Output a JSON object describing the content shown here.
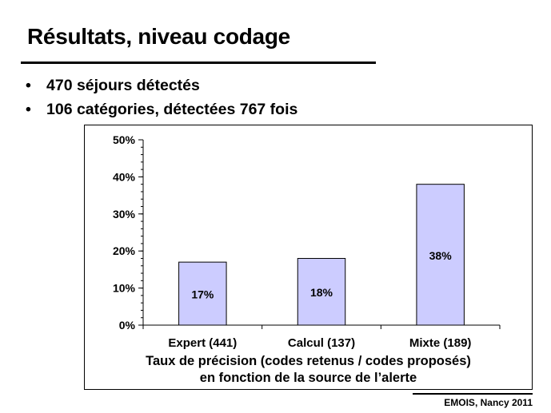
{
  "slide": {
    "title": "Résultats, niveau codage",
    "bullets": [
      "470 séjours détectés",
      "106 catégories, détectées 767 fois"
    ],
    "footer": "EMOIS, Nancy 2011"
  },
  "chart_data": {
    "type": "bar",
    "categories": [
      "Expert (441)",
      "Calcul (137)",
      "Mixte (189)"
    ],
    "values": [
      17,
      18,
      38
    ],
    "value_labels": [
      "17%",
      "18%",
      "38%"
    ],
    "y_ticks": [
      "0%",
      "10%",
      "20%",
      "30%",
      "40%",
      "50%"
    ],
    "ylim": [
      0,
      50
    ],
    "caption_lines": [
      "Taux de précision (codes retenus / codes proposés)",
      "en fonction de la source de l’alerte"
    ],
    "bar_color": "#ccccff",
    "grid": false,
    "legend": "none"
  }
}
